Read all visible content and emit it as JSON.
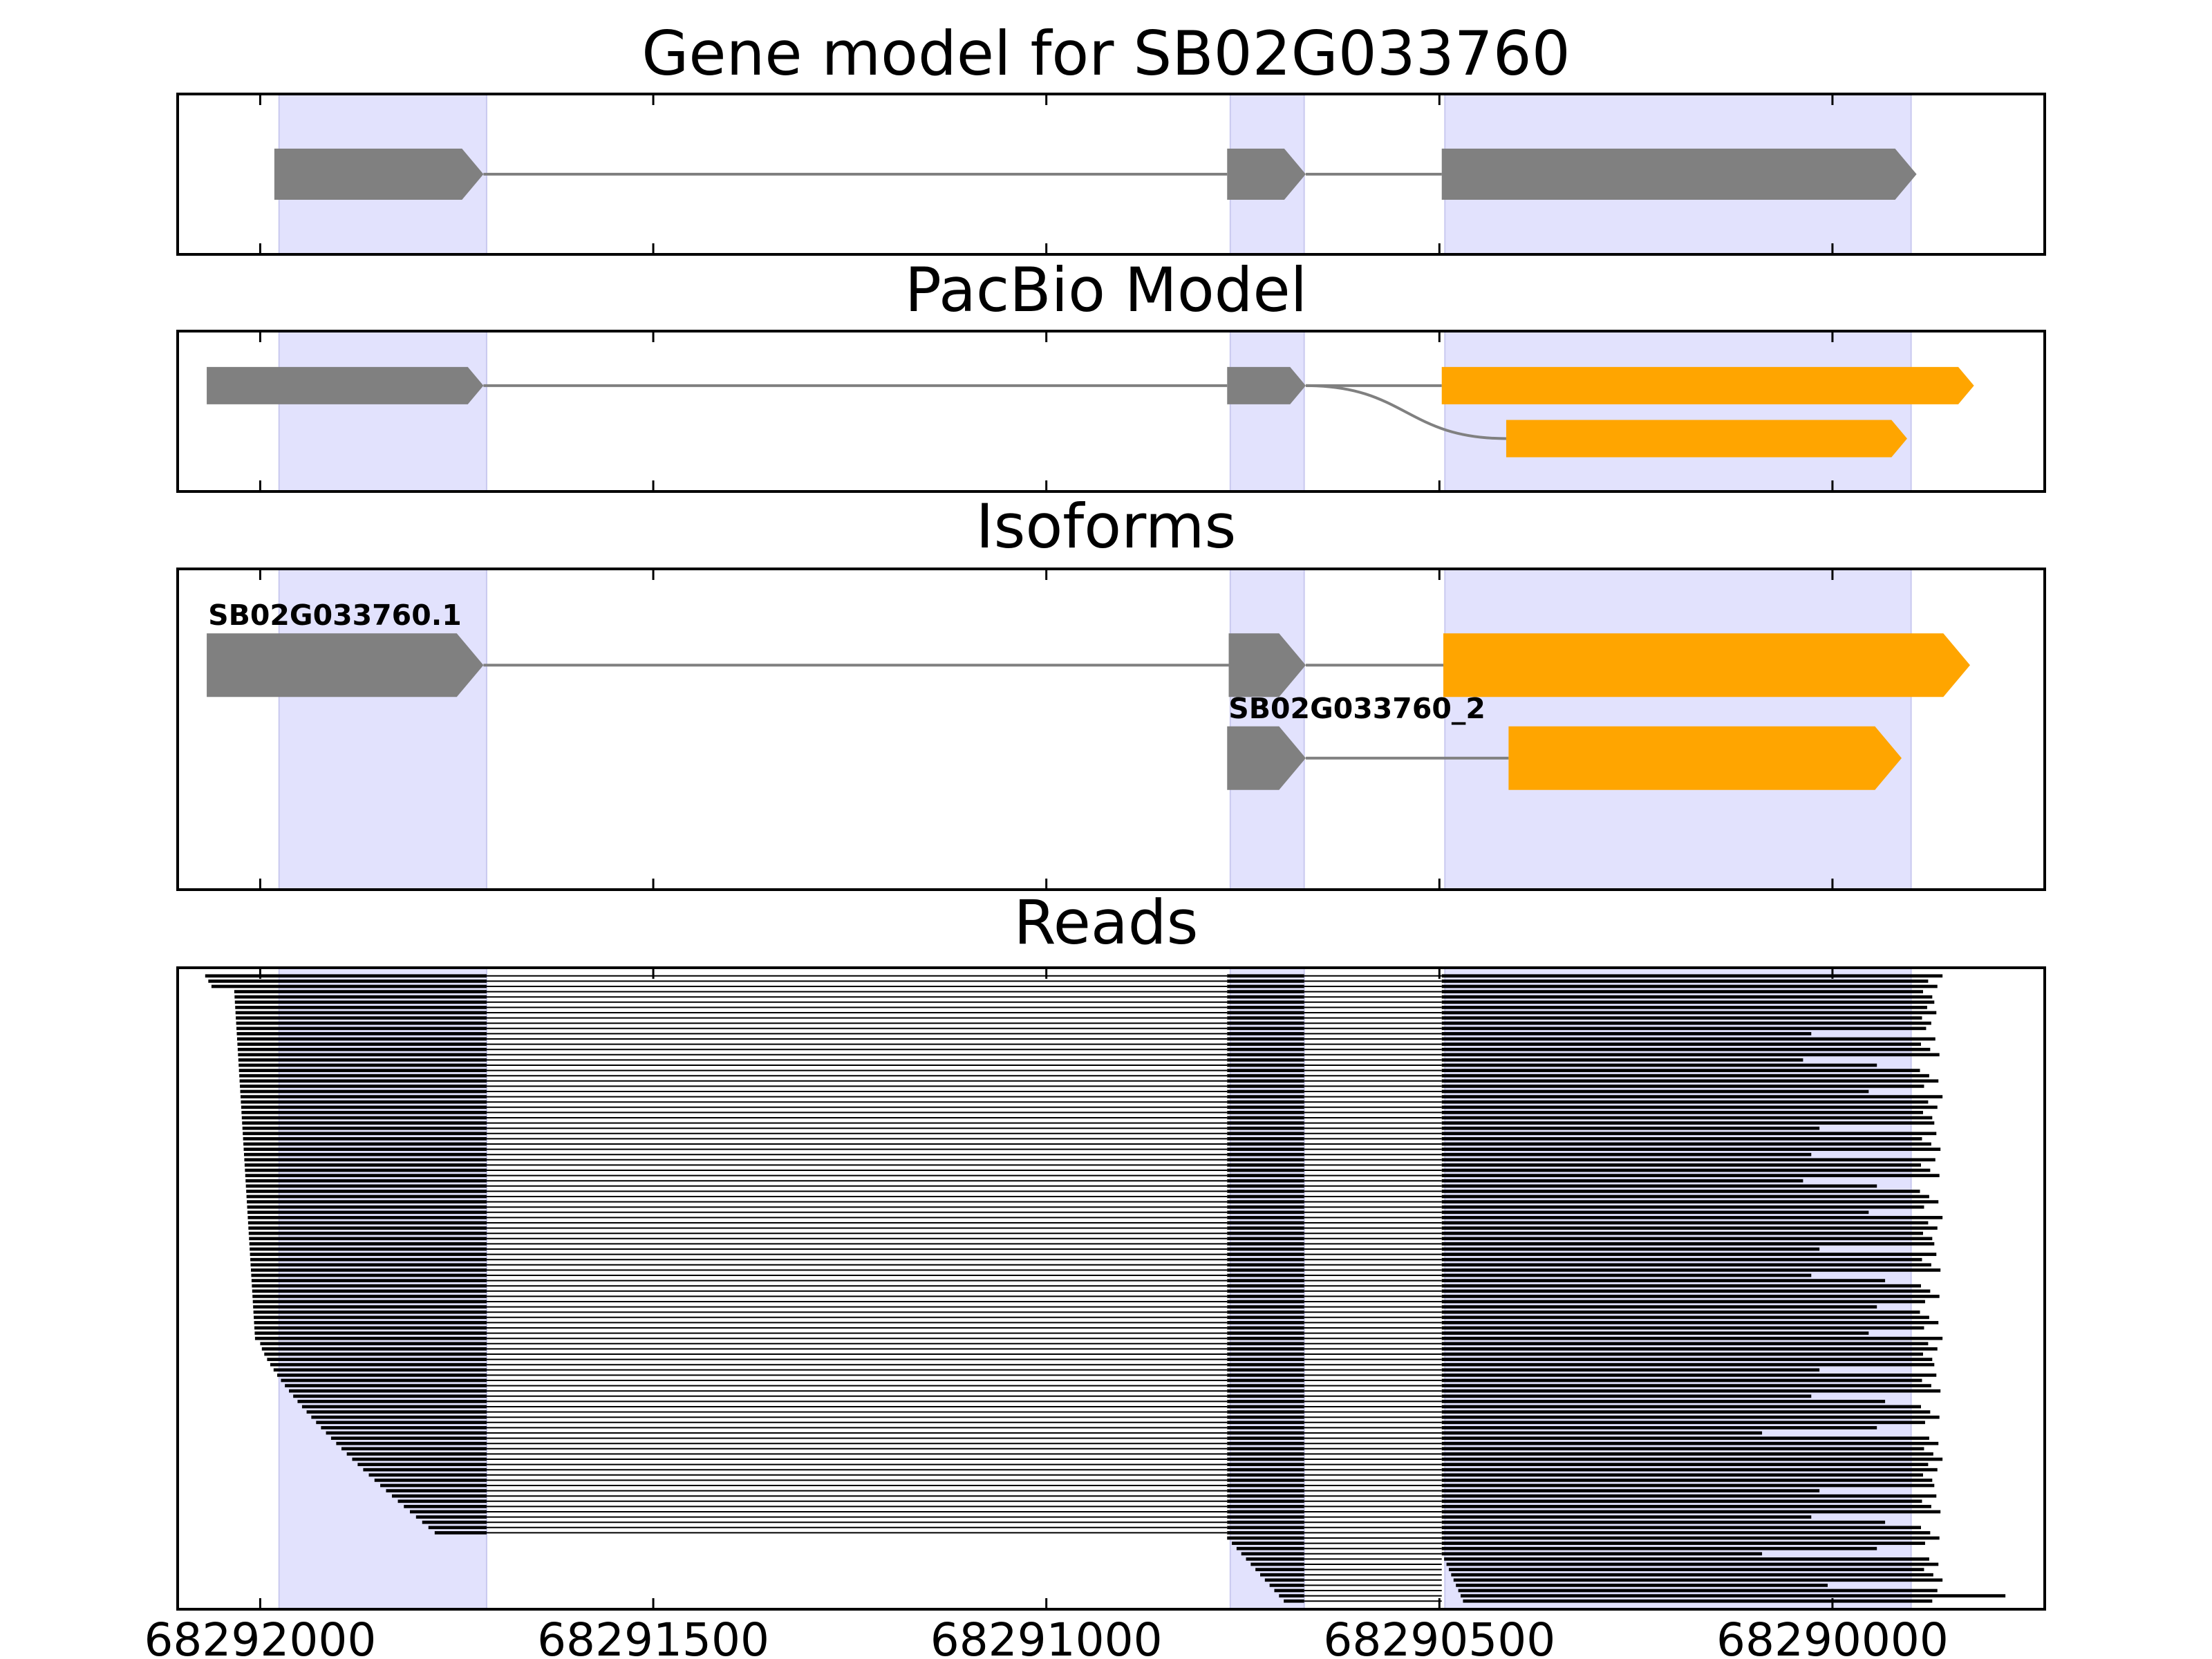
{
  "colors": {
    "shade": "#e2e2fd",
    "shade_edge": "#c9c9ef",
    "gene": "#808080",
    "pacbio_alt": "#ffa500",
    "read": "#000000",
    "frame": "#000000"
  },
  "chart_data": {
    "type": "gene_track",
    "xaxis": {
      "reversed": true,
      "xlim": [
        68292105,
        68289730
      ],
      "ticks": [
        68292000,
        68291500,
        68291000,
        68290500,
        68290000
      ],
      "tick_labels": [
        "68292000",
        "68291500",
        "68291000",
        "68290500",
        "68290000"
      ]
    },
    "shaded_exons": [
      [
        68291976,
        68291712
      ],
      [
        68290766,
        68290672
      ],
      [
        68290493,
        68289900
      ]
    ],
    "panels": [
      {
        "id": "gene_model",
        "title": "Gene model for SB02G033760",
        "tracks": [
          {
            "exons": [
              [
                68291982,
                68291716,
                "gene"
              ],
              [
                68290770,
                68290670,
                "gene"
              ],
              [
                68290497,
                68289893,
                "gene"
              ]
            ]
          }
        ]
      },
      {
        "id": "pacbio_model",
        "title": "PacBio Model",
        "tracks": [
          {
            "exons": [
              [
                68292068,
                68291716,
                "gene"
              ],
              [
                68290770,
                68290670,
                "gene"
              ],
              [
                68290497,
                68289820,
                "pacbio_alt"
              ]
            ]
          },
          {
            "exons": [
              [
                68290415,
                68289905,
                "pacbio_alt"
              ]
            ],
            "join_from": 0
          }
        ]
      },
      {
        "id": "isoforms",
        "title": "Isoforms",
        "tracks": [
          {
            "name": "SB02G033760.1",
            "exons": [
              [
                68292068,
                68291716,
                "gene"
              ],
              [
                68290768,
                68290670,
                "gene"
              ],
              [
                68290495,
                68289825,
                "pacbio_alt"
              ]
            ]
          },
          {
            "name": "SB02G033760_2",
            "exons": [
              [
                68290770,
                68290670,
                "gene"
              ],
              [
                68290412,
                68289912,
                "pacbio_alt"
              ]
            ]
          }
        ]
      },
      {
        "id": "reads",
        "title": "Reads",
        "read_count": 120,
        "read_exon2": [
          68290770,
          68290672
        ],
        "read_exon1_end": 68291712,
        "read_exon3_start": 68290497
      }
    ]
  }
}
